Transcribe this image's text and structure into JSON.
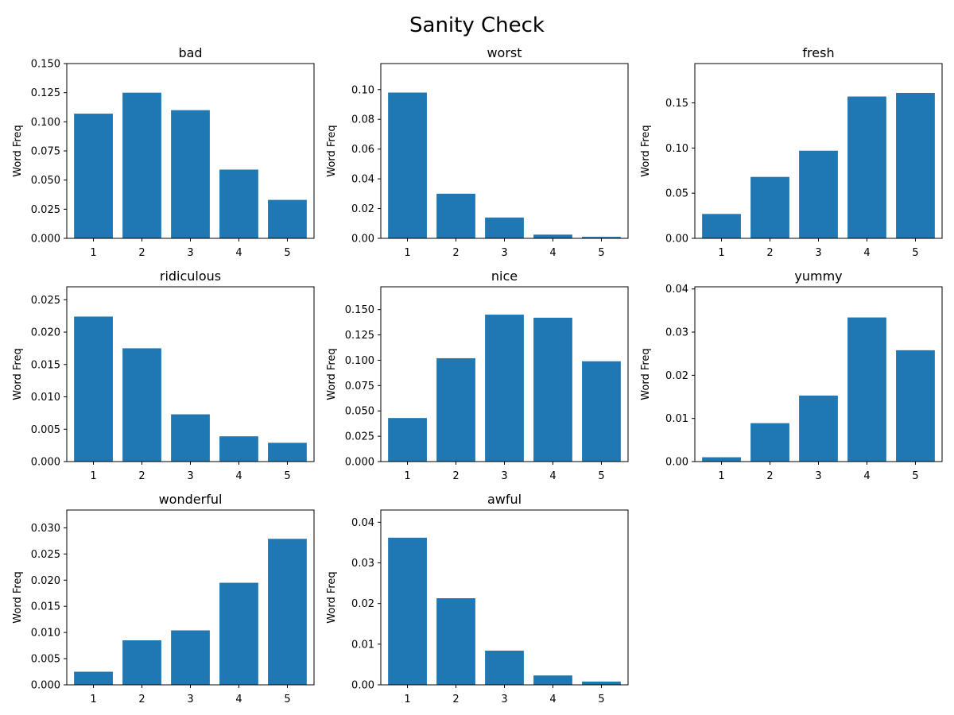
{
  "figure": {
    "title": "Sanity Check"
  },
  "colors": {
    "bar": "#1f77b4"
  },
  "chart_data": [
    {
      "type": "bar",
      "title": "bad",
      "ylabel": "Word Freq",
      "categories": [
        "1",
        "2",
        "3",
        "4",
        "5"
      ],
      "values": [
        0.107,
        0.125,
        0.11,
        0.059,
        0.033
      ],
      "ylim": [
        0,
        0.15
      ],
      "yticks": [
        "0.000",
        "0.025",
        "0.050",
        "0.075",
        "0.100",
        "0.125",
        "0.150"
      ]
    },
    {
      "type": "bar",
      "title": "worst",
      "ylabel": "Word Freq",
      "categories": [
        "1",
        "2",
        "3",
        "4",
        "5"
      ],
      "values": [
        0.098,
        0.03,
        0.014,
        0.0025,
        0.001
      ],
      "ylim": [
        0,
        0.1175
      ],
      "yticks": [
        "0.00",
        "0.02",
        "0.04",
        "0.06",
        "0.08",
        "0.10"
      ]
    },
    {
      "type": "bar",
      "title": "fresh",
      "ylabel": "Word Freq",
      "categories": [
        "1",
        "2",
        "3",
        "4",
        "5"
      ],
      "values": [
        0.027,
        0.068,
        0.097,
        0.157,
        0.161
      ],
      "ylim": [
        0,
        0.1935
      ],
      "yticks": [
        "0.00",
        "0.05",
        "0.10",
        "0.15"
      ]
    },
    {
      "type": "bar",
      "title": "ridiculous",
      "ylabel": "Word Freq",
      "categories": [
        "1",
        "2",
        "3",
        "4",
        "5"
      ],
      "values": [
        0.0224,
        0.0175,
        0.0073,
        0.0039,
        0.0029
      ],
      "ylim": [
        0,
        0.027
      ],
      "yticks": [
        "0.000",
        "0.005",
        "0.010",
        "0.015",
        "0.020",
        "0.025"
      ]
    },
    {
      "type": "bar",
      "title": "nice",
      "ylabel": "Word Freq",
      "categories": [
        "1",
        "2",
        "3",
        "4",
        "5"
      ],
      "values": [
        0.043,
        0.102,
        0.145,
        0.142,
        0.099
      ],
      "ylim": [
        0,
        0.1725
      ],
      "yticks": [
        "0.000",
        "0.025",
        "0.050",
        "0.075",
        "0.100",
        "0.125",
        "0.150"
      ]
    },
    {
      "type": "bar",
      "title": "yummy",
      "ylabel": "Word Freq",
      "categories": [
        "1",
        "2",
        "3",
        "4",
        "5"
      ],
      "values": [
        0.001,
        0.0089,
        0.0153,
        0.0334,
        0.0258
      ],
      "ylim": [
        0,
        0.0405
      ],
      "yticks": [
        "0.00",
        "0.01",
        "0.02",
        "0.03",
        "0.04"
      ]
    },
    {
      "type": "bar",
      "title": "wonderful",
      "ylabel": "Word Freq",
      "categories": [
        "1",
        "2",
        "3",
        "4",
        "5"
      ],
      "values": [
        0.0025,
        0.0085,
        0.0104,
        0.0195,
        0.0279
      ],
      "ylim": [
        0,
        0.0334
      ],
      "yticks": [
        "0.000",
        "0.005",
        "0.010",
        "0.015",
        "0.020",
        "0.025",
        "0.030"
      ]
    },
    {
      "type": "bar",
      "title": "awful",
      "ylabel": "Word Freq",
      "categories": [
        "1",
        "2",
        "3",
        "4",
        "5"
      ],
      "values": [
        0.0362,
        0.0213,
        0.0084,
        0.0023,
        0.0008
      ],
      "ylim": [
        0,
        0.043
      ],
      "yticks": [
        "0.00",
        "0.01",
        "0.02",
        "0.03",
        "0.04"
      ]
    }
  ]
}
